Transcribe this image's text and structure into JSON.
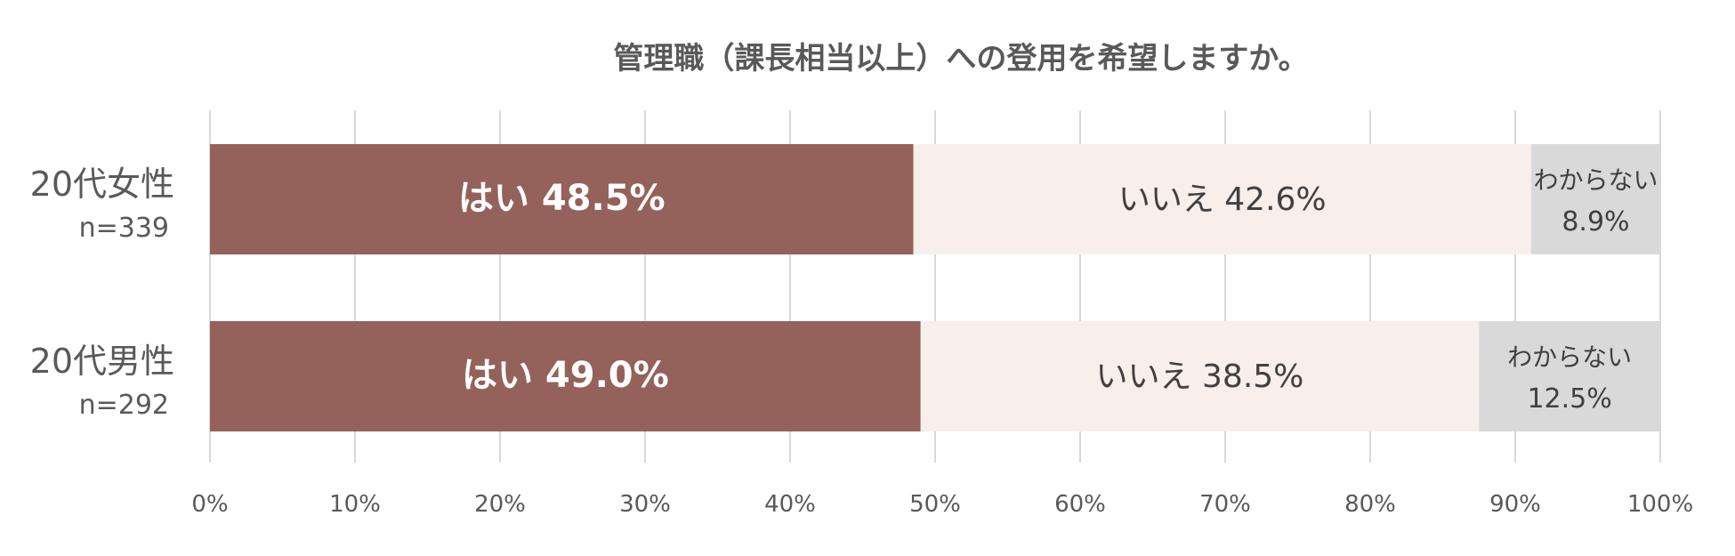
{
  "chart_data": {
    "type": "bar",
    "stacked": true,
    "orientation": "horizontal",
    "title": "管理職（課長相当以上）への登用を希望しますか。",
    "categories": [
      {
        "label": "20代女性",
        "n": "n=339"
      },
      {
        "label": "20代男性",
        "n": "n=292"
      }
    ],
    "series": [
      {
        "name": "はい",
        "color": "#94625A",
        "label_color": "#ffffff",
        "bold": true,
        "values": [
          48.5,
          49.0
        ]
      },
      {
        "name": "いいえ",
        "color": "#F8EEEA",
        "label_color": "#404040",
        "bold": false,
        "values": [
          42.6,
          38.5
        ]
      },
      {
        "name": "わからない",
        "color": "#D9D9D9",
        "label_color": "#404040",
        "bold": false,
        "two_line": true,
        "values": [
          8.9,
          12.5
        ]
      }
    ],
    "value_suffix": "%",
    "xlim": [
      0,
      100
    ],
    "x_ticks": [
      0,
      10,
      20,
      30,
      40,
      50,
      60,
      70,
      80,
      90,
      100
    ],
    "x_tick_labels": [
      "0%",
      "10%",
      "20%",
      "30%",
      "40%",
      "50%",
      "60%",
      "70%",
      "80%",
      "90%",
      "100%"
    ],
    "grid": true,
    "legend": "none"
  }
}
